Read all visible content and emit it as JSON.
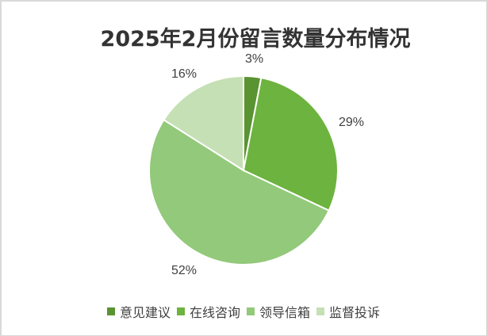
{
  "chart_data": {
    "type": "pie",
    "title": "2025年2月份留言数量分布情况",
    "categories": [
      "意见建议",
      "在线咨询",
      "领导信箱",
      "监督投诉"
    ],
    "values": [
      3,
      29,
      52,
      16
    ],
    "value_labels": [
      "3%",
      "29%",
      "52%",
      "16%"
    ],
    "colors": [
      "#5a9331",
      "#6db33f",
      "#93c97a",
      "#c5e0b4"
    ],
    "start_angle": "12 o'clock",
    "direction": "clockwise",
    "legend_position": "bottom"
  },
  "title": "2025年2月份留言数量分布情况",
  "labels": {
    "s0": "3%",
    "s1": "29%",
    "s2": "52%",
    "s3": "16%"
  },
  "legend": [
    {
      "label": "意见建议",
      "color": "#5a9331"
    },
    {
      "label": "在线咨询",
      "color": "#6db33f"
    },
    {
      "label": "领导信箱",
      "color": "#93c97a"
    },
    {
      "label": "监督投诉",
      "color": "#c5e0b4"
    }
  ]
}
